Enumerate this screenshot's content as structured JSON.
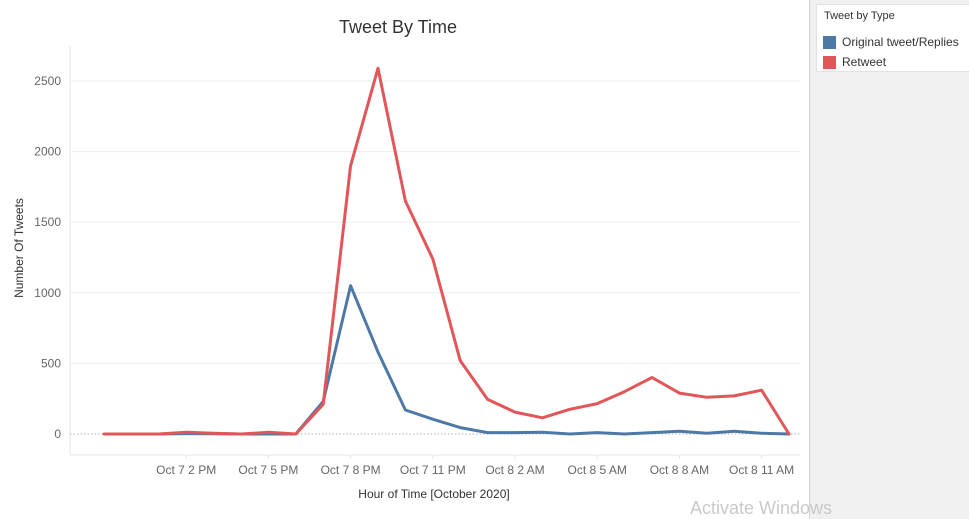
{
  "chart_data": {
    "type": "line",
    "title": "Tweet By Time",
    "xlabel": "Hour of Time [October 2020]",
    "ylabel": "Number Of Tweets",
    "ylim": [
      0,
      2600
    ],
    "yticks": [
      0,
      500,
      1000,
      1500,
      2000,
      2500
    ],
    "xtick_labels": [
      "Oct 7 2 PM",
      "Oct 7 5 PM",
      "Oct 7 8 PM",
      "Oct 7 11 PM",
      "Oct 8 2 AM",
      "Oct 8 5 AM",
      "Oct 8 8 AM",
      "Oct 8 11 AM"
    ],
    "x": [
      "Oct 7 11 AM",
      "Oct 7 12 PM",
      "Oct 7 1 PM",
      "Oct 7 2 PM",
      "Oct 7 3 PM",
      "Oct 7 4 PM",
      "Oct 7 5 PM",
      "Oct 7 6 PM",
      "Oct 7 7 PM",
      "Oct 7 8 PM",
      "Oct 7 9 PM",
      "Oct 7 10 PM",
      "Oct 7 11 PM",
      "Oct 8 12 AM",
      "Oct 8 1 AM",
      "Oct 8 2 AM",
      "Oct 8 3 AM",
      "Oct 8 4 AM",
      "Oct 8 5 AM",
      "Oct 8 6 AM",
      "Oct 8 7 AM",
      "Oct 8 8 AM",
      "Oct 8 9 AM",
      "Oct 8 10 AM",
      "Oct 8 11 AM",
      "Oct 8 12 PM"
    ],
    "grid": true,
    "legend_position": "top-right",
    "series": [
      {
        "name": "Original tweet/Replies",
        "color": "#4e79a7",
        "values": [
          null,
          0,
          0,
          3,
          2,
          0,
          0,
          0,
          230,
          1050,
          580,
          170,
          105,
          45,
          10,
          10,
          12,
          0,
          10,
          0,
          10,
          20,
          5,
          20,
          5,
          0
        ]
      },
      {
        "name": "Retweet",
        "color": "#e15759",
        "values": [
          0,
          0,
          0,
          12,
          5,
          0,
          12,
          0,
          210,
          1900,
          2590,
          1650,
          1240,
          520,
          245,
          155,
          115,
          175,
          215,
          300,
          400,
          290,
          260,
          270,
          310,
          0
        ]
      }
    ]
  },
  "legend": {
    "title": "Tweet by Type",
    "items": [
      {
        "label": "Original tweet/Replies",
        "color": "#4e79a7"
      },
      {
        "label": "Retweet",
        "color": "#e15759"
      }
    ]
  },
  "watermark": "Activate Windows"
}
